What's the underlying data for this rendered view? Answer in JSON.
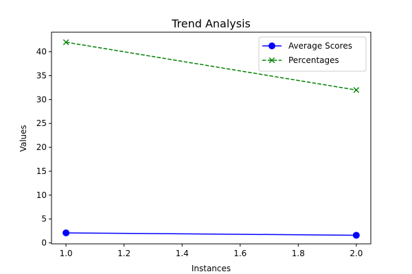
{
  "chart_data": {
    "type": "line",
    "title": "Trend Analysis",
    "xlabel": "Instances",
    "ylabel": "Values",
    "x": [
      1.0,
      2.0
    ],
    "xlim": [
      0.95,
      2.05
    ],
    "ylim": [
      -0.2,
      44.1
    ],
    "xticks": [
      1.0,
      1.2,
      1.4,
      1.6,
      1.8,
      2.0
    ],
    "xtick_labels": [
      "1.0",
      "1.2",
      "1.4",
      "1.6",
      "1.8",
      "2.0"
    ],
    "yticks": [
      0,
      5,
      10,
      15,
      20,
      25,
      30,
      35,
      40
    ],
    "ytick_labels": [
      "0",
      "5",
      "10",
      "15",
      "20",
      "25",
      "30",
      "35",
      "40"
    ],
    "grid": false,
    "legend_position": "top-right",
    "series": [
      {
        "name": "Average Scores",
        "values": [
          2.1,
          1.6
        ],
        "color": "#0000ff",
        "line_style": "solid",
        "marker": "circle"
      },
      {
        "name": "Percentages",
        "values": [
          42,
          32
        ],
        "color": "#008000",
        "line_style": "dashed",
        "marker": "x"
      }
    ]
  }
}
